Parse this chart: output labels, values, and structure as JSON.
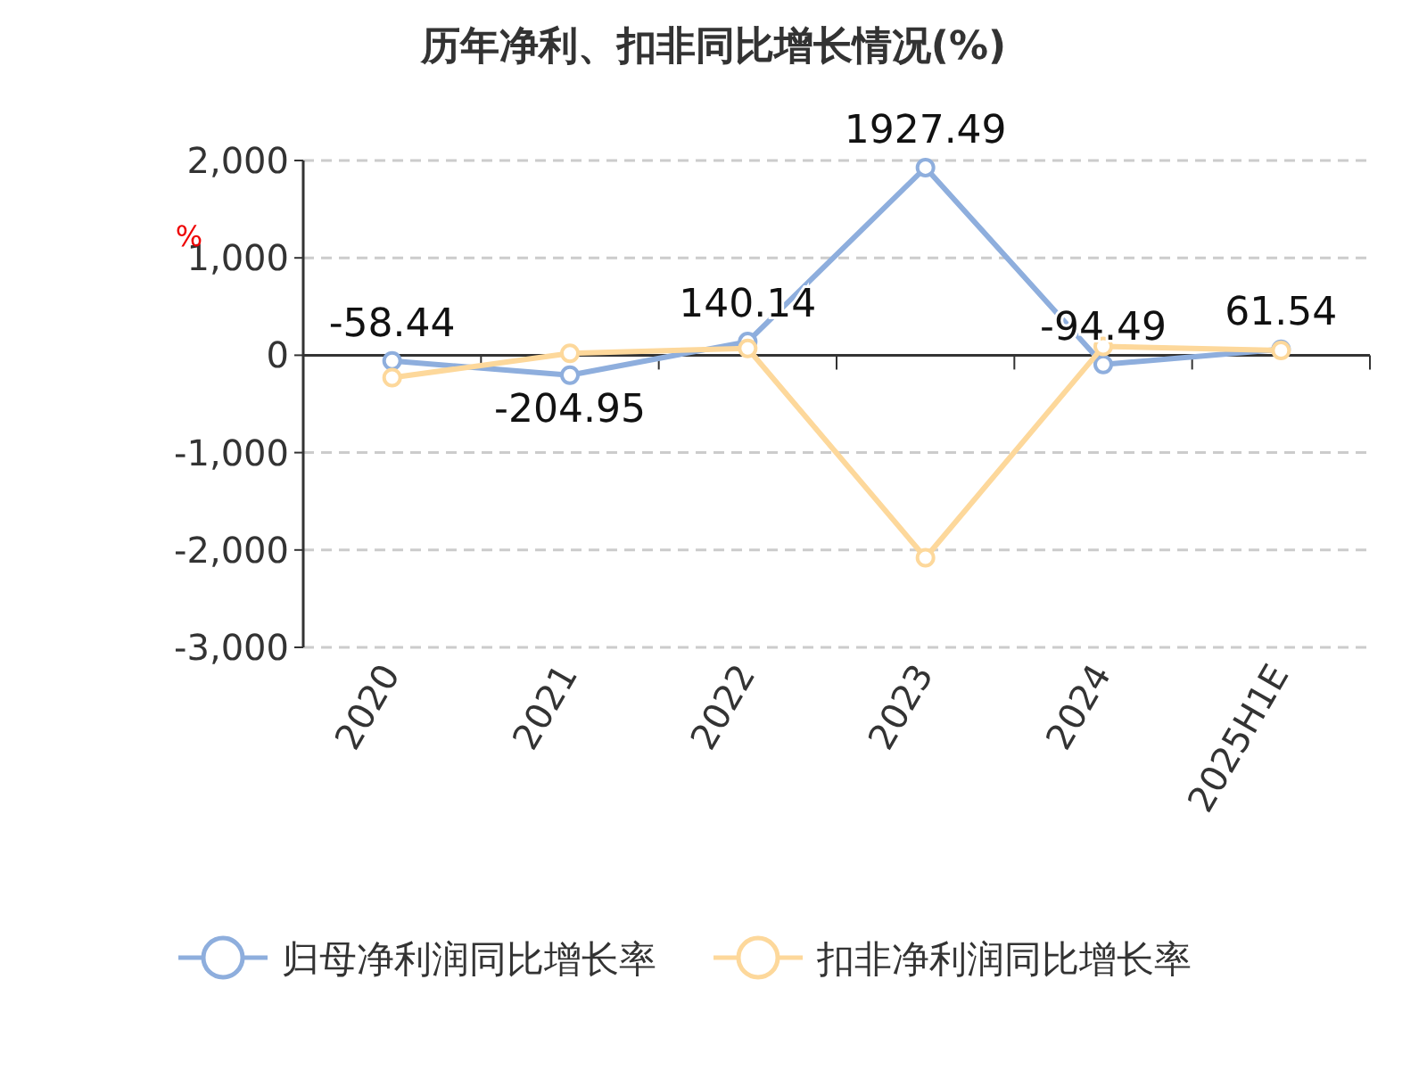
{
  "chart_data": {
    "type": "line",
    "title": "历年净利、扣非同比增长情况(%)",
    "ylabel": "%",
    "categories": [
      "2020",
      "2021",
      "2022",
      "2023",
      "2024",
      "2025H1E"
    ],
    "series": [
      {
        "name": "归母净利润同比增长率",
        "color": "#8eaedd",
        "values": [
          -58.44,
          -204.95,
          140.14,
          1927.49,
          -94.49,
          61.54
        ],
        "value_labels": [
          "-58.44",
          "-204.95",
          "140.14",
          "1927.49",
          "-94.49",
          "61.54"
        ]
      },
      {
        "name": "扣非净利润同比增长率",
        "color": "#fdd89b",
        "values": [
          -230,
          20,
          70,
          -2080,
          90,
          50
        ]
      }
    ],
    "ylim": [
      -3000,
      2000
    ],
    "yticks": [
      {
        "value": -3000,
        "label": "-3,000"
      },
      {
        "value": -2000,
        "label": "-2,000"
      },
      {
        "value": -1000,
        "label": "-1,000"
      },
      {
        "value": 0,
        "label": "0"
      },
      {
        "value": 1000,
        "label": "1,000"
      },
      {
        "value": 2000,
        "label": "2,000"
      }
    ],
    "grid": "y",
    "legend": "bottom",
    "marker": "circle"
  }
}
